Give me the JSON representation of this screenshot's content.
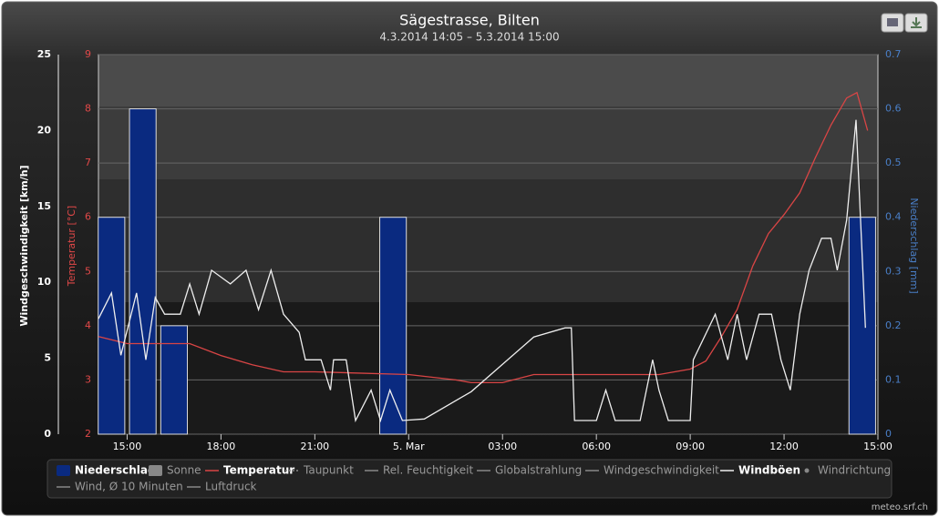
{
  "chart_data": {
    "type": "combo",
    "title": "Sägestrasse, Bilten",
    "subtitle": "4.3.2014 14:05 – 5.3.2014 15:00",
    "credit": "meteo.srf.ch",
    "xlim": [
      14.0833,
      39
    ],
    "xticks": [
      {
        "value": 15,
        "label": "15:00"
      },
      {
        "value": 18,
        "label": "18:00"
      },
      {
        "value": 21,
        "label": "21:00"
      },
      {
        "value": 24,
        "label": "5. Mar"
      },
      {
        "value": 27,
        "label": "03:00"
      },
      {
        "value": 30,
        "label": "06:00"
      },
      {
        "value": 33,
        "label": "09:00"
      },
      {
        "value": 36,
        "label": "12:00"
      },
      {
        "value": 39,
        "label": "15:00"
      }
    ],
    "ylabel": "Windgeschwindigkeit [km/h]",
    "ylim": [
      0,
      25
    ],
    "yticks": [
      0,
      5,
      10,
      15,
      20,
      25
    ],
    "y3label": "Temperatur [°C]",
    "y3lim": [
      2,
      9
    ],
    "y3ticks": [
      2,
      3,
      4,
      5,
      6,
      7,
      8,
      9
    ],
    "y2label": "Niederschlag [mm]",
    "y2lim": [
      0,
      0.7
    ],
    "y2ticks": [
      0,
      0.1,
      0.2,
      0.3,
      0.4,
      0.5,
      0.6,
      0.7
    ],
    "grid": true,
    "series": [
      {
        "name": "Niederschlag",
        "type": "bar",
        "axis": "y2",
        "color": "#0a2a80",
        "visible": true,
        "x": [
          14.5,
          15.5,
          16.5,
          23.5,
          38.5
        ],
        "values": [
          0.4,
          0.6,
          0.2,
          0.4,
          0.4
        ]
      },
      {
        "name": "Sonne",
        "type": "bar",
        "color": "#999999",
        "visible": false
      },
      {
        "name": "Temperatur",
        "type": "line",
        "axis": "y3",
        "color": "#d94545",
        "visible": true,
        "x": [
          14.0833,
          15,
          17,
          18,
          19,
          20,
          21,
          24,
          25.5,
          26,
          27,
          28,
          32,
          33,
          33.5,
          34,
          34.5,
          35,
          35.5,
          36,
          36.5,
          37,
          37.5,
          38,
          38.33,
          38.67
        ],
        "values": [
          3.8,
          3.67,
          3.67,
          3.45,
          3.28,
          3.15,
          3.15,
          3.1,
          3.0,
          2.95,
          2.95,
          3.1,
          3.1,
          3.2,
          3.35,
          3.8,
          4.3,
          5.1,
          5.7,
          6.05,
          6.45,
          7.1,
          7.7,
          8.2,
          8.3,
          7.6
        ]
      },
      {
        "name": "Taupunkt",
        "type": "line",
        "dash": true,
        "color": "#999999",
        "visible": false
      },
      {
        "name": "Rel. Feuchtigkeit",
        "type": "line",
        "color": "#999999",
        "visible": false
      },
      {
        "name": "Globalstrahlung",
        "type": "line",
        "color": "#999999",
        "visible": false
      },
      {
        "name": "Windgeschwindigkeit",
        "type": "line",
        "color": "#999999",
        "visible": false
      },
      {
        "name": "Windböen",
        "type": "line",
        "axis": "y",
        "color": "#eeeeee",
        "visible": true,
        "x": [
          14.0833,
          14.5,
          14.8,
          15.3,
          15.6,
          15.9,
          16.2,
          16.7,
          17.0,
          17.3,
          17.7,
          18.3,
          18.8,
          19.2,
          19.6,
          20.0,
          20.5,
          20.7,
          21.2,
          21.5,
          21.6,
          22.0,
          22.3,
          22.8,
          23.1,
          23.4,
          23.8,
          24.5,
          26.0,
          27.0,
          28.0,
          29.0,
          29.2,
          29.3,
          30.0,
          30.3,
          30.6,
          31.4,
          31.8,
          32.0,
          32.3,
          33.0,
          33.1,
          33.8,
          34.2,
          34.5,
          34.8,
          35.2,
          35.6,
          35.9,
          36.2,
          36.5,
          36.8,
          37.2,
          37.5,
          37.7,
          38.0,
          38.3,
          38.6
        ],
        "values": [
          7.6,
          9.3,
          5.2,
          9.3,
          4.9,
          9.0,
          7.9,
          7.9,
          9.9,
          7.9,
          10.8,
          9.9,
          10.8,
          8.2,
          10.8,
          7.9,
          6.7,
          4.9,
          4.9,
          2.9,
          4.9,
          4.9,
          0.9,
          2.9,
          0.9,
          2.9,
          0.9,
          1.0,
          2.8,
          4.6,
          6.4,
          7.0,
          7.0,
          0.9,
          0.9,
          2.9,
          0.9,
          0.9,
          4.9,
          2.9,
          0.9,
          0.9,
          4.9,
          7.9,
          4.9,
          7.9,
          4.9,
          7.9,
          7.9,
          4.9,
          2.9,
          7.9,
          10.8,
          12.9,
          12.9,
          10.8,
          14.1,
          20.7,
          7.0
        ]
      },
      {
        "name": "Windrichtung",
        "type": "scatter",
        "color": "#999999",
        "visible": false
      },
      {
        "name": "Wind, Ø 10 Minuten",
        "type": "line",
        "color": "#999999",
        "visible": false
      },
      {
        "name": "Luftdruck",
        "type": "line",
        "color": "#999999",
        "visible": false
      }
    ]
  }
}
